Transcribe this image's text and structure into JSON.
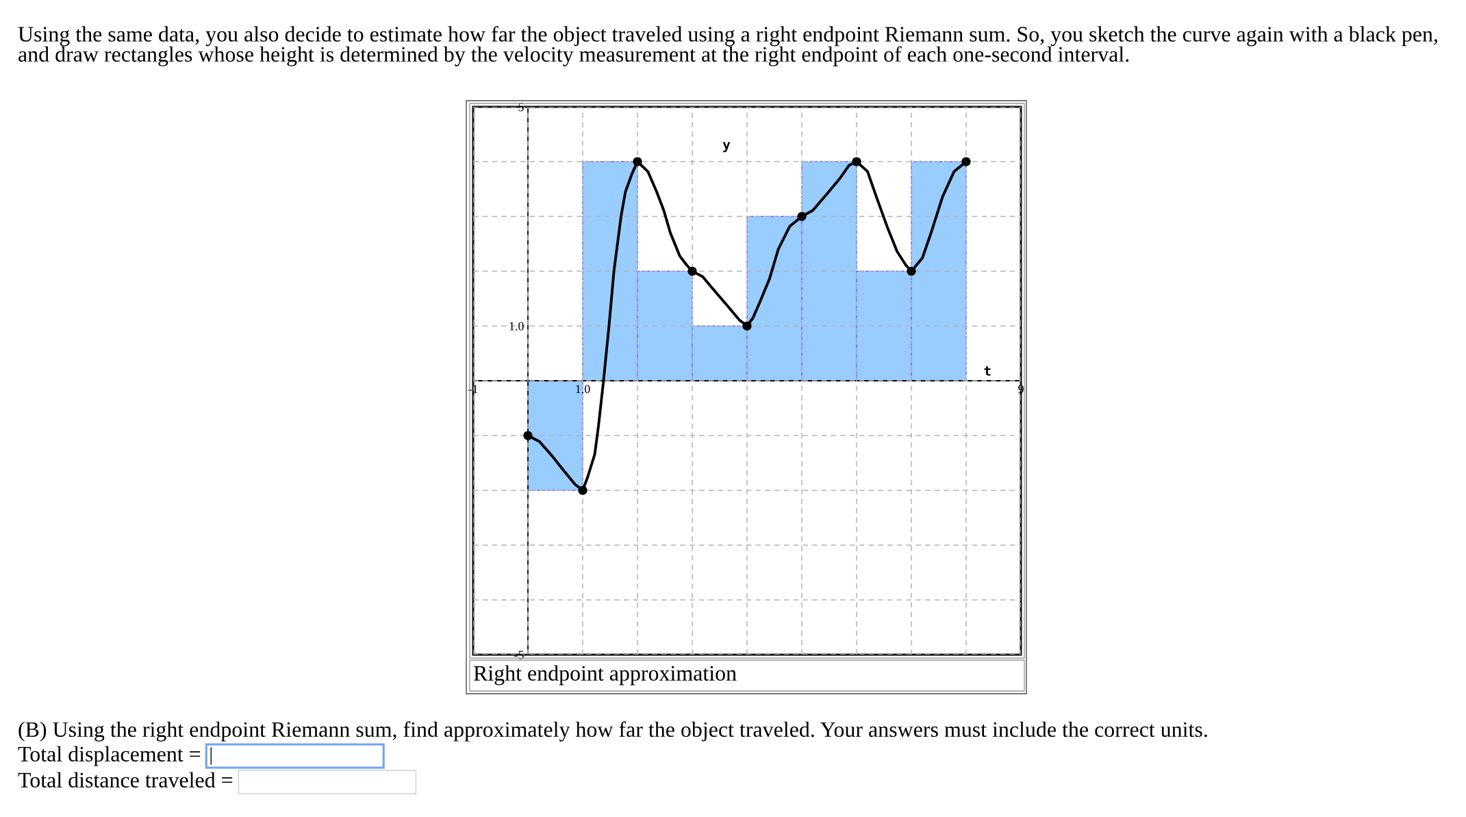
{
  "chart_data": {
    "type": "bar",
    "title": "Using the same data, you also decide to estimate how far the object traveled using a right endpoint Riemann sum. So, you sketch the curve again with a black pen, and draw rectangles whose height is determined by the velocity measurement at the right endpoint of each one-second interval.",
    "xlabel": "t",
    "ylabel": "y",
    "annotations": [
      "Right endpoint approximation",
      "(B) Using the right endpoint Riemann sum, find approximately how far the object traveled. Your answers must include the correct units.",
      "Total displacement =",
      "Total distance traveled ="
    ],
    "xlim": [
      -1,
      9
    ],
    "ylim": [
      -5,
      5
    ],
    "xticks": [
      {
        "value": -1,
        "label": "-1"
      },
      {
        "value": 0,
        "label": null
      },
      {
        "value": 1,
        "label": "1.0"
      },
      {
        "value": 2,
        "label": null
      },
      {
        "value": 3,
        "label": null
      },
      {
        "value": 4,
        "label": null
      },
      {
        "value": 5,
        "label": null
      },
      {
        "value": 6,
        "label": null
      },
      {
        "value": 7,
        "label": null
      },
      {
        "value": 8,
        "label": null
      },
      {
        "value": 9,
        "label": "9"
      }
    ],
    "yticks": [
      {
        "value": -5,
        "label": "-5"
      },
      {
        "value": -4,
        "label": null
      },
      {
        "value": -3,
        "label": null
      },
      {
        "value": -2,
        "label": null
      },
      {
        "value": -1,
        "label": null
      },
      {
        "value": 0,
        "label": null
      },
      {
        "value": 1,
        "label": "1.0"
      },
      {
        "value": 2,
        "label": null
      },
      {
        "value": 3,
        "label": null
      },
      {
        "value": 4,
        "label": null
      },
      {
        "value": 5,
        "label": "5"
      }
    ],
    "grid": true,
    "series": [
      {
        "color": "#99ccff",
        "x": [
          0.5,
          1.5,
          2.5,
          3.5,
          4.5,
          5.5,
          6.5,
          7.5
        ],
        "values": [
          -2,
          4,
          2,
          1,
          3,
          4,
          2,
          4
        ]
      },
      {
        "type": "line",
        "color": "#000000",
        "line_style": "solid",
        "x": [
          0,
          0.21,
          0.44,
          0.67,
          0.86,
          1,
          1.09,
          1.22,
          1.29,
          1.38,
          1.48,
          1.57,
          1.7,
          1.78,
          1.9,
          2,
          2.19,
          2.35,
          2.48,
          2.6,
          2.77,
          2.9,
          3,
          3.19,
          3.4,
          3.65,
          3.86,
          4,
          4.11,
          4.24,
          4.41,
          4.57,
          4.78,
          5,
          5.2,
          5.45,
          5.7,
          5.86,
          6,
          6.2,
          6.36,
          6.57,
          6.74,
          6.9,
          7,
          7.2,
          7.36,
          7.57,
          7.78,
          8
        ],
        "values": [
          -1,
          -1.11,
          -1.37,
          -1.66,
          -1.89,
          -2,
          -1.76,
          -1.34,
          -0.81,
          0,
          1,
          2,
          3,
          3.45,
          3.78,
          4,
          3.82,
          3.45,
          3.11,
          2.7,
          2.28,
          2.11,
          2,
          1.9,
          1.65,
          1.36,
          1.11,
          1,
          1.15,
          1.45,
          1.86,
          2.4,
          2.82,
          3,
          3.11,
          3.4,
          3.7,
          3.93,
          4,
          3.82,
          3.36,
          2.78,
          2.36,
          2.11,
          2,
          2.24,
          2.7,
          3.36,
          3.82,
          4
        ]
      },
      {
        "type": "scatter",
        "color": "#000000",
        "marker": "circle",
        "x": [
          0,
          1,
          2,
          3,
          4,
          5,
          6,
          7,
          8
        ],
        "values": [
          -1,
          -2,
          4,
          2,
          1,
          3,
          4,
          2,
          4
        ]
      }
    ]
  }
}
